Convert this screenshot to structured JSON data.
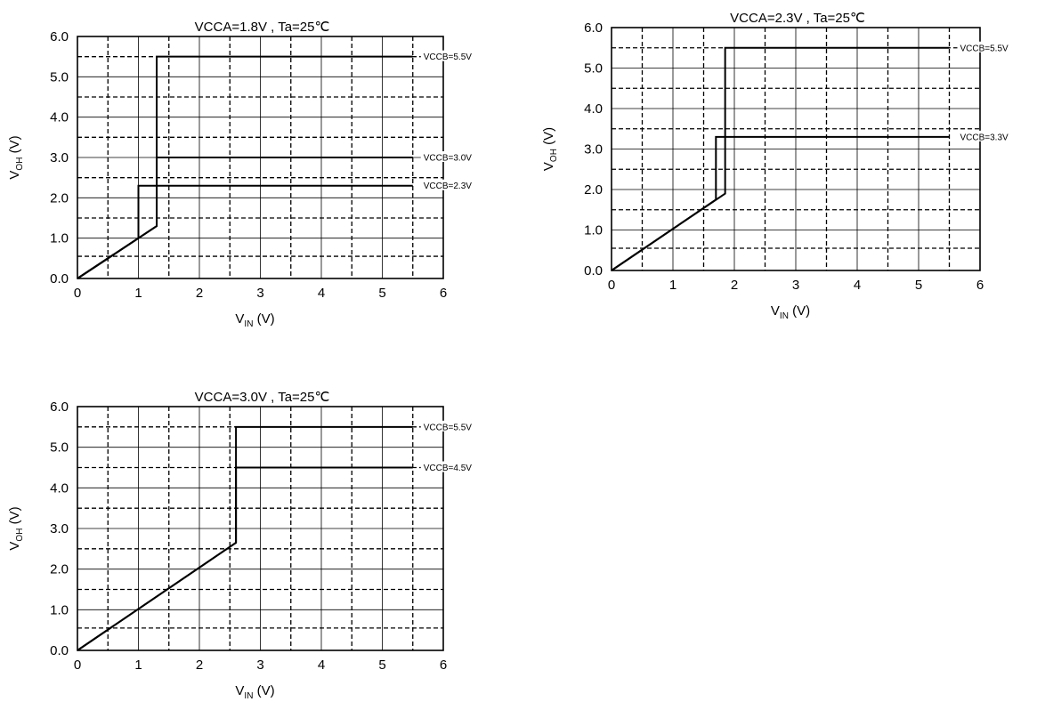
{
  "chart_data": [
    {
      "type": "line",
      "title": "VCCA=1.8V , Ta=25℃",
      "xlabel": {
        "main": "V",
        "sub": "IN",
        "unit": " (V)"
      },
      "ylabel": {
        "main": "V",
        "sub": "OH",
        "unit": " (V)"
      },
      "xlim": [
        0,
        6
      ],
      "ylim": [
        0,
        6
      ],
      "x_ticks": [
        "0",
        "1",
        "2",
        "3",
        "4",
        "5",
        "6"
      ],
      "y_ticks": [
        "0.0",
        "1.0",
        "2.0",
        "3.0",
        "4.0",
        "5.0",
        "6.0"
      ],
      "grid": true,
      "dashed_grid_x": [
        0.5,
        1.5,
        2.5,
        3.5,
        4.5,
        5.5
      ],
      "dashed_grid_y": [
        0.55,
        1.5,
        2.5,
        3.5,
        4.5,
        5.5
      ],
      "series": [
        {
          "name": "VCCB=5.5V",
          "x": [
            0,
            1.3,
            1.3,
            5.5
          ],
          "y": [
            0,
            1.3,
            5.5,
            5.5
          ]
        },
        {
          "name": "VCCB=3.0V",
          "x": [
            0,
            1.3,
            1.3,
            5.5
          ],
          "y": [
            0,
            1.3,
            3.0,
            3.0
          ]
        },
        {
          "name": "VCCB=2.3V",
          "x": [
            0,
            1.0,
            1.0,
            5.5
          ],
          "y": [
            0,
            1.0,
            2.3,
            2.3
          ]
        }
      ]
    },
    {
      "type": "line",
      "title": "VCCA=2.3V , Ta=25℃",
      "xlabel": {
        "main": "V",
        "sub": "IN",
        "unit": " (V)"
      },
      "ylabel": {
        "main": "V",
        "sub": "OH",
        "unit": " (V)"
      },
      "xlim": [
        0,
        6
      ],
      "ylim": [
        0,
        6
      ],
      "x_ticks": [
        "0",
        "1",
        "2",
        "3",
        "4",
        "5",
        "6"
      ],
      "y_ticks": [
        "0.0",
        "1.0",
        "2.0",
        "3.0",
        "4.0",
        "5.0",
        "6.0"
      ],
      "grid": true,
      "dashed_grid_x": [
        0.5,
        1.5,
        2.5,
        3.5,
        4.5,
        5.5
      ],
      "dashed_grid_y": [
        0.55,
        1.5,
        2.5,
        3.5,
        4.5,
        5.5
      ],
      "series": [
        {
          "name": "VCCB=5.5V",
          "x": [
            0,
            1.85,
            1.85,
            5.5
          ],
          "y": [
            0,
            1.9,
            5.5,
            5.5
          ]
        },
        {
          "name": "VCCB=3.3V",
          "x": [
            0,
            1.7,
            1.7,
            5.5
          ],
          "y": [
            0,
            1.75,
            3.3,
            3.3
          ]
        }
      ]
    },
    {
      "type": "line",
      "title": "VCCA=3.0V , Ta=25℃",
      "xlabel": {
        "main": "V",
        "sub": "IN",
        "unit": " (V)"
      },
      "ylabel": {
        "main": "V",
        "sub": "OH",
        "unit": " (V)"
      },
      "xlim": [
        0,
        6
      ],
      "ylim": [
        0,
        6
      ],
      "x_ticks": [
        "0",
        "1",
        "2",
        "3",
        "4",
        "5",
        "6"
      ],
      "y_ticks": [
        "0.0",
        "1.0",
        "2.0",
        "3.0",
        "4.0",
        "5.0",
        "6.0"
      ],
      "grid": true,
      "dashed_grid_x": [
        0.5,
        1.5,
        2.5,
        3.5,
        4.5,
        5.5
      ],
      "dashed_grid_y": [
        0.55,
        1.5,
        2.5,
        3.5,
        4.5,
        5.5
      ],
      "series": [
        {
          "name": "VCCB=5.5V",
          "x": [
            0,
            2.6,
            2.6,
            5.5
          ],
          "y": [
            0,
            2.65,
            5.5,
            5.5
          ]
        },
        {
          "name": "VCCB=4.5V",
          "x": [
            0,
            2.6,
            2.6,
            5.5
          ],
          "y": [
            0,
            2.65,
            4.5,
            4.5
          ]
        }
      ]
    }
  ]
}
